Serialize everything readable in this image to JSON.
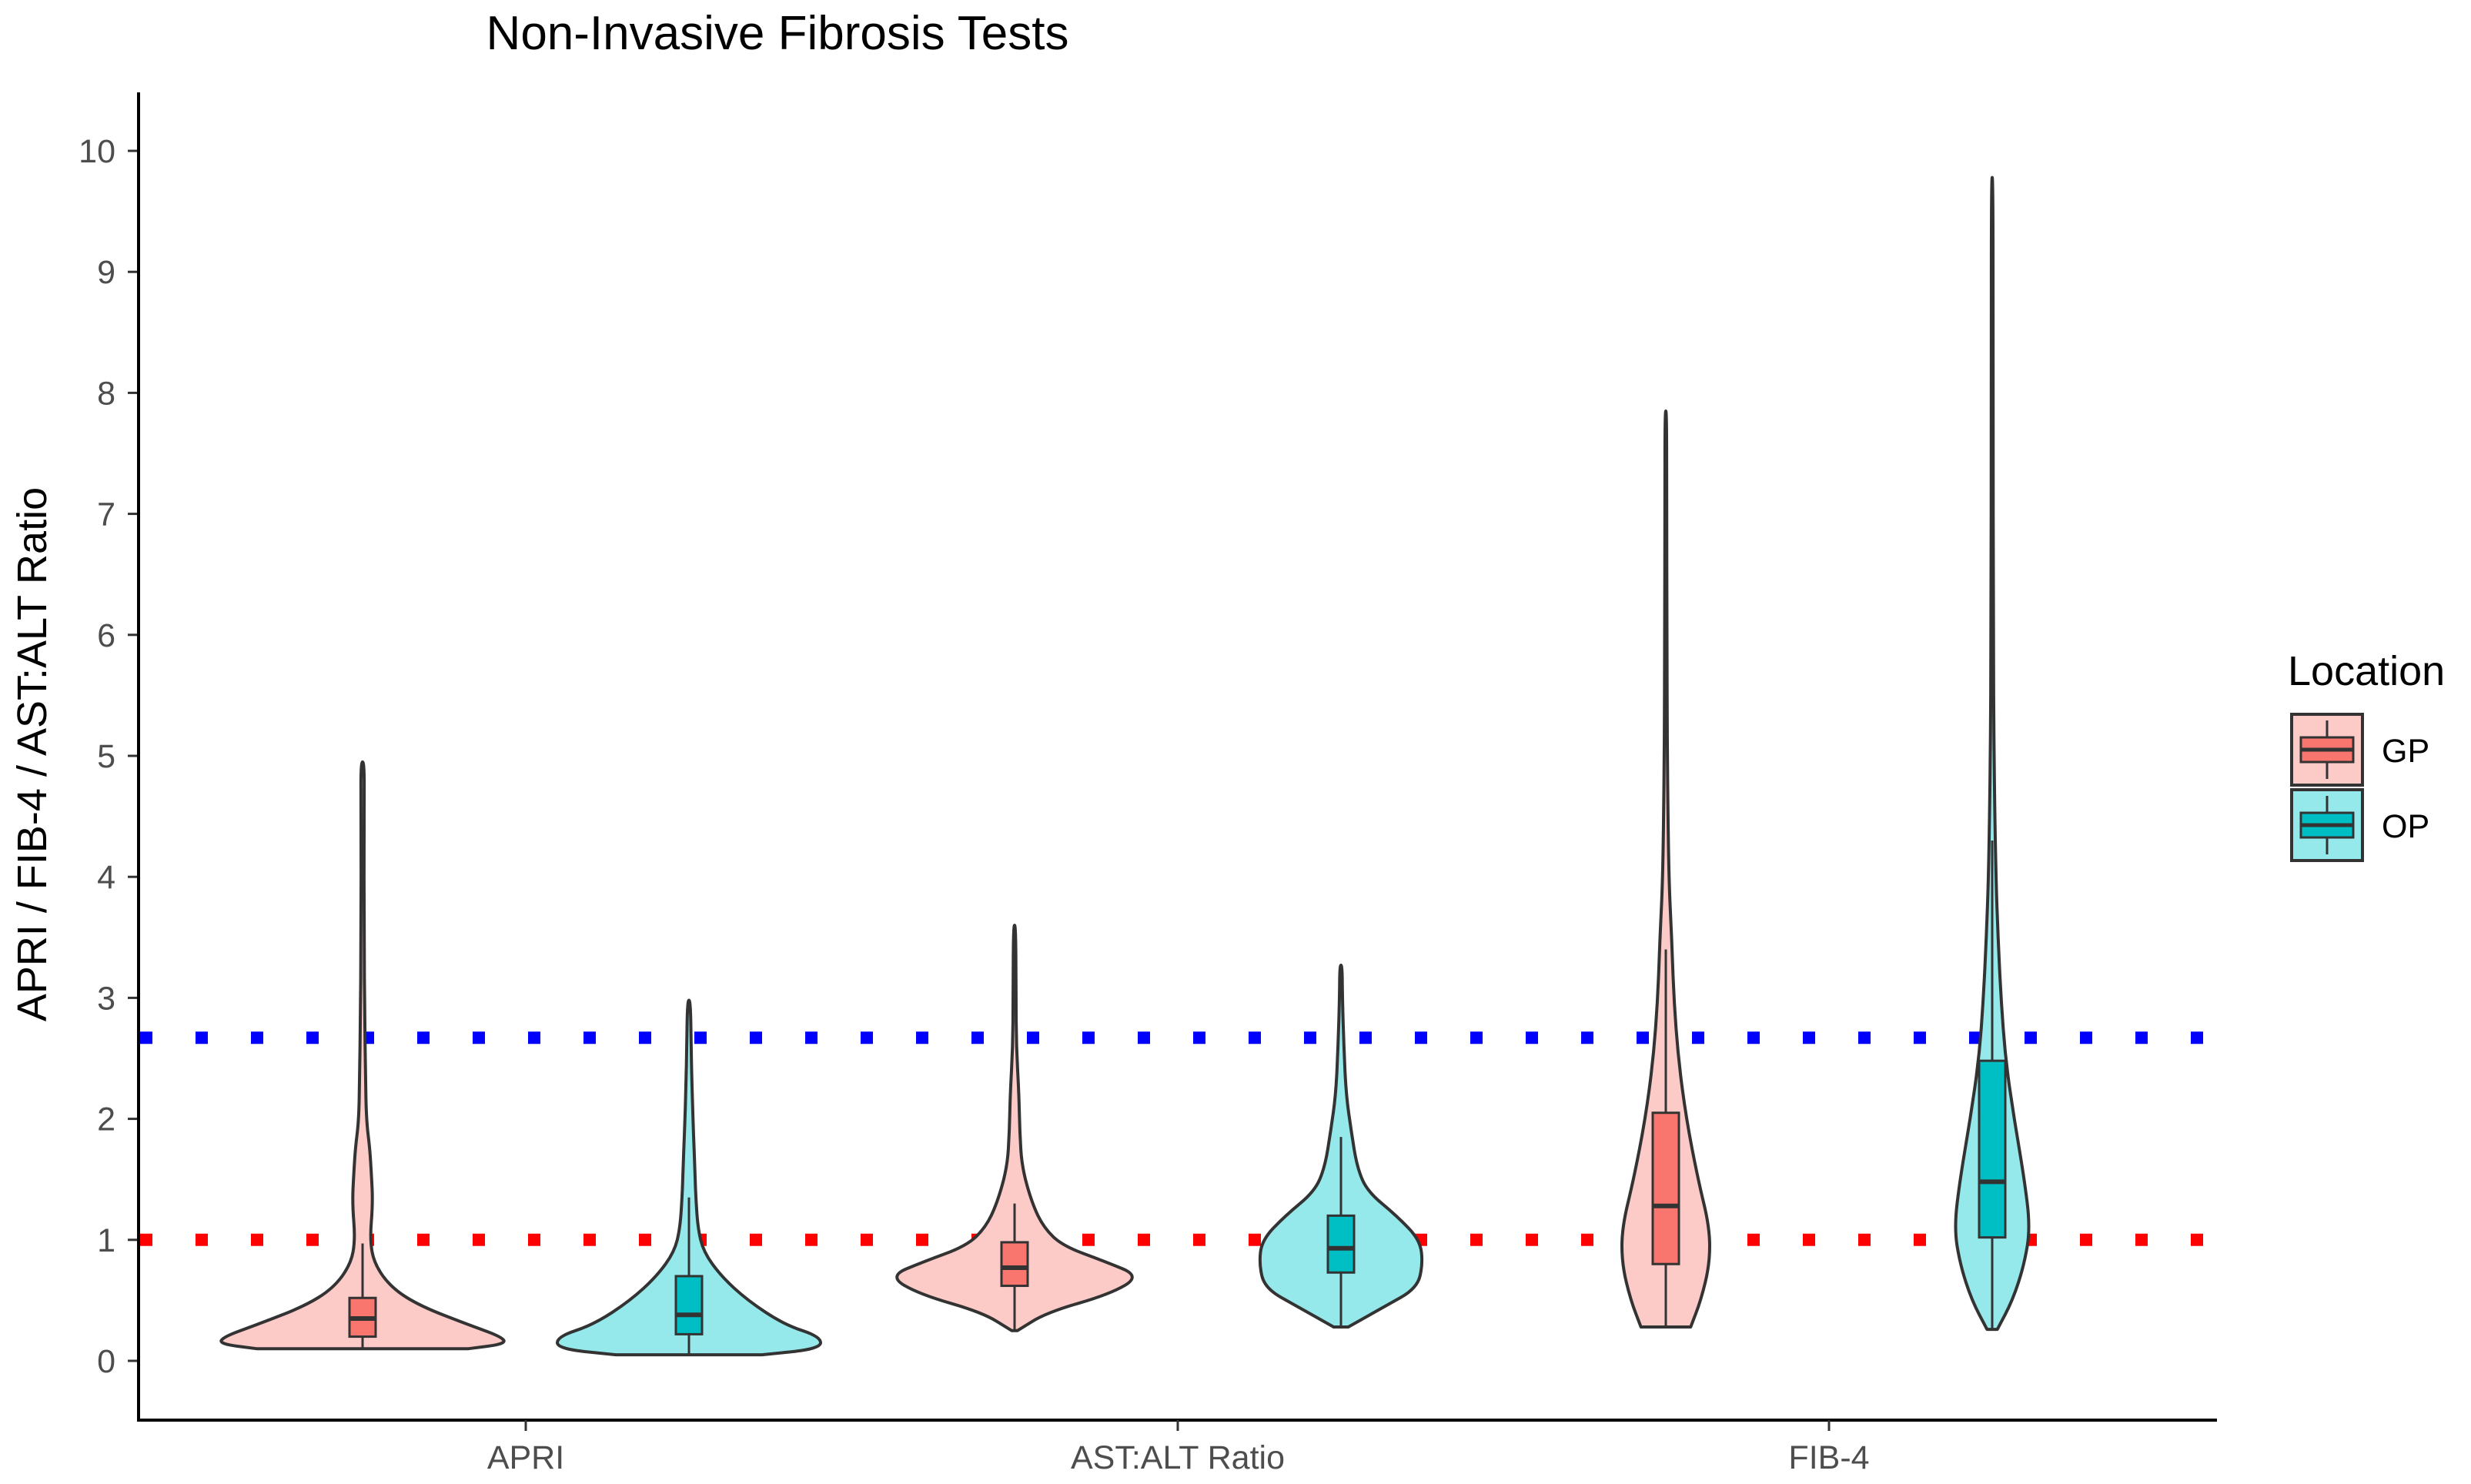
{
  "chart_data": {
    "type": "violin",
    "title": "Non-Invasive Fibrosis Tests",
    "xlabel": "",
    "ylabel": "APRI / FIB-4 / AST:ALT Ratio",
    "ylim": [
      -0.5,
      10.5
    ],
    "yticks": [
      0,
      1,
      2,
      3,
      4,
      5,
      6,
      7,
      8,
      9,
      10
    ],
    "categories": [
      "APRI",
      "AST:ALT Ratio",
      "FIB-4"
    ],
    "legend": {
      "title": "Location",
      "position": "right"
    },
    "series": [
      {
        "name": "GP",
        "fill": "#F8766D",
        "violin_fill": "#FCCBC7",
        "groups": [
          {
            "category": "APRI",
            "min": 0.1,
            "max": 4.95,
            "q1": 0.2,
            "median": 0.35,
            "q3": 0.52,
            "whisker_low": 0.1,
            "whisker_high": 0.97,
            "density": [
              [
                0.1,
                0.72
              ],
              [
                0.14,
                0.98
              ],
              [
                0.2,
                0.95
              ],
              [
                0.3,
                0.72
              ],
              [
                0.45,
                0.4
              ],
              [
                0.6,
                0.2
              ],
              [
                0.8,
                0.08
              ],
              [
                1.0,
                0.05
              ],
              [
                1.3,
                0.07
              ],
              [
                1.55,
                0.06
              ],
              [
                1.75,
                0.05
              ],
              [
                2.0,
                0.025
              ],
              [
                2.4,
                0.02
              ],
              [
                2.8,
                0.015
              ],
              [
                3.5,
                0.01
              ],
              [
                4.5,
                0.01
              ],
              [
                4.95,
                0.012
              ]
            ]
          },
          {
            "category": "AST:ALT Ratio",
            "min": 0.25,
            "max": 3.6,
            "q1": 0.62,
            "median": 0.77,
            "q3": 0.98,
            "whisker_low": 0.25,
            "whisker_high": 1.3,
            "density": [
              [
                0.25,
                0.02
              ],
              [
                0.4,
                0.22
              ],
              [
                0.55,
                0.65
              ],
              [
                0.7,
                0.86
              ],
              [
                0.82,
                0.62
              ],
              [
                0.95,
                0.33
              ],
              [
                1.1,
                0.2
              ],
              [
                1.3,
                0.12
              ],
              [
                1.6,
                0.05
              ],
              [
                1.9,
                0.035
              ],
              [
                2.2,
                0.03
              ],
              [
                2.6,
                0.012
              ],
              [
                3.0,
                0.01
              ],
              [
                3.6,
                0.008
              ]
            ]
          },
          {
            "category": "FIB-4",
            "min": 0.28,
            "max": 7.85,
            "q1": 0.8,
            "median": 1.28,
            "q3": 2.05,
            "whisker_low": 0.28,
            "whisker_high": 3.4,
            "density": [
              [
                0.28,
                0.17
              ],
              [
                0.5,
                0.24
              ],
              [
                0.8,
                0.3
              ],
              [
                1.1,
                0.3
              ],
              [
                1.5,
                0.22
              ],
              [
                2.0,
                0.14
              ],
              [
                2.5,
                0.085
              ],
              [
                3.0,
                0.055
              ],
              [
                3.5,
                0.04
              ],
              [
                4.0,
                0.02
              ],
              [
                5.0,
                0.01
              ],
              [
                6.0,
                0.008
              ],
              [
                7.0,
                0.006
              ],
              [
                7.85,
                0.006
              ]
            ]
          }
        ]
      },
      {
        "name": "OP",
        "fill": "#00BFC4",
        "violin_fill": "#95E9EB",
        "groups": [
          {
            "category": "APRI",
            "min": 0.05,
            "max": 2.98,
            "q1": 0.22,
            "median": 0.38,
            "q3": 0.7,
            "whisker_low": 0.05,
            "whisker_high": 1.35,
            "density": [
              [
                0.05,
                0.5
              ],
              [
                0.1,
                0.9
              ],
              [
                0.2,
                0.9
              ],
              [
                0.3,
                0.65
              ],
              [
                0.5,
                0.4
              ],
              [
                0.7,
                0.22
              ],
              [
                0.9,
                0.1
              ],
              [
                1.1,
                0.06
              ],
              [
                1.4,
                0.045
              ],
              [
                1.6,
                0.04
              ],
              [
                1.9,
                0.03
              ],
              [
                2.3,
                0.02
              ],
              [
                2.6,
                0.015
              ],
              [
                2.98,
                0.01
              ]
            ]
          },
          {
            "category": "AST:ALT Ratio",
            "min": 0.28,
            "max": 3.27,
            "q1": 0.73,
            "median": 0.93,
            "q3": 1.2,
            "whisker_low": 0.28,
            "whisker_high": 1.85,
            "density": [
              [
                0.28,
                0.05
              ],
              [
                0.45,
                0.3
              ],
              [
                0.6,
                0.52
              ],
              [
                0.8,
                0.56
              ],
              [
                1.0,
                0.54
              ],
              [
                1.2,
                0.38
              ],
              [
                1.4,
                0.18
              ],
              [
                1.6,
                0.11
              ],
              [
                1.9,
                0.07
              ],
              [
                2.2,
                0.035
              ],
              [
                2.6,
                0.02
              ],
              [
                3.0,
                0.01
              ],
              [
                3.27,
                0.008
              ]
            ]
          },
          {
            "category": "FIB-4",
            "min": 0.26,
            "max": 9.78,
            "q1": 1.02,
            "median": 1.48,
            "q3": 2.48,
            "whisker_low": 0.26,
            "whisker_high": 4.3,
            "density": [
              [
                0.26,
                0.035
              ],
              [
                0.5,
                0.14
              ],
              [
                0.8,
                0.22
              ],
              [
                1.1,
                0.26
              ],
              [
                1.5,
                0.22
              ],
              [
                2.0,
                0.15
              ],
              [
                2.5,
                0.09
              ],
              [
                3.0,
                0.06
              ],
              [
                3.5,
                0.04
              ],
              [
                4.0,
                0.025
              ],
              [
                5.0,
                0.012
              ],
              [
                6.0,
                0.008
              ],
              [
                8.0,
                0.006
              ],
              [
                9.78,
                0.006
              ]
            ]
          }
        ]
      }
    ],
    "reference_lines": [
      {
        "y": 2.67,
        "color": "#0000FF",
        "style": "dotted"
      },
      {
        "y": 1.0,
        "color": "#FF0000",
        "style": "dotted"
      }
    ]
  }
}
